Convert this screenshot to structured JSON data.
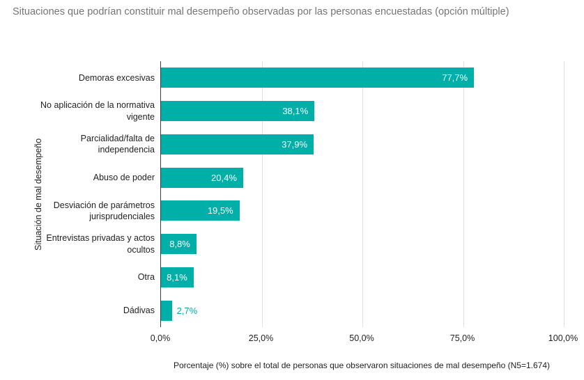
{
  "title": "Situaciones que podrían constituir mal desempeño observadas por las personas encuestadas (opción múltiple)",
  "chart_data": {
    "type": "bar",
    "orientation": "horizontal",
    "title": "Situaciones que podrían constituir mal desempeño observadas por las personas encuestadas (opción múltiple)",
    "categories": [
      "Demoras excesivas",
      "No aplicación de la normativa vigente",
      "Parcialidad/falta de independencia",
      "Abuso de poder",
      "Desviación de parámetros jurisprudenciales",
      "Entrevistas privadas y actos ocultos",
      "Otra",
      "Dádivas"
    ],
    "values": [
      77.7,
      38.1,
      37.9,
      20.4,
      19.5,
      8.8,
      8.1,
      2.7
    ],
    "value_labels": [
      "77,7%",
      "38,1%",
      "37,9%",
      "20,4%",
      "19,5%",
      "8,8%",
      "8,1%",
      "2,7%"
    ],
    "ylabel": "Situación de mal desempeño",
    "xlabel": "Porcentaje (%) sobre el total de personas que observaron situaciones de mal desempeño (N5=1.674)",
    "x_tick_values": [
      0,
      25,
      50,
      75,
      100
    ],
    "x_tick_labels": [
      "0,0%",
      "25,0%",
      "50,0%",
      "75,0%",
      "100,0%"
    ],
    "xlim": [
      0,
      100
    ],
    "grid": true,
    "legend": "none",
    "bar_color": "#00b0a8",
    "value_label_color_inside": "#ffffff",
    "value_label_color_outside": "#00b0a8",
    "inside_label_min": 5
  }
}
